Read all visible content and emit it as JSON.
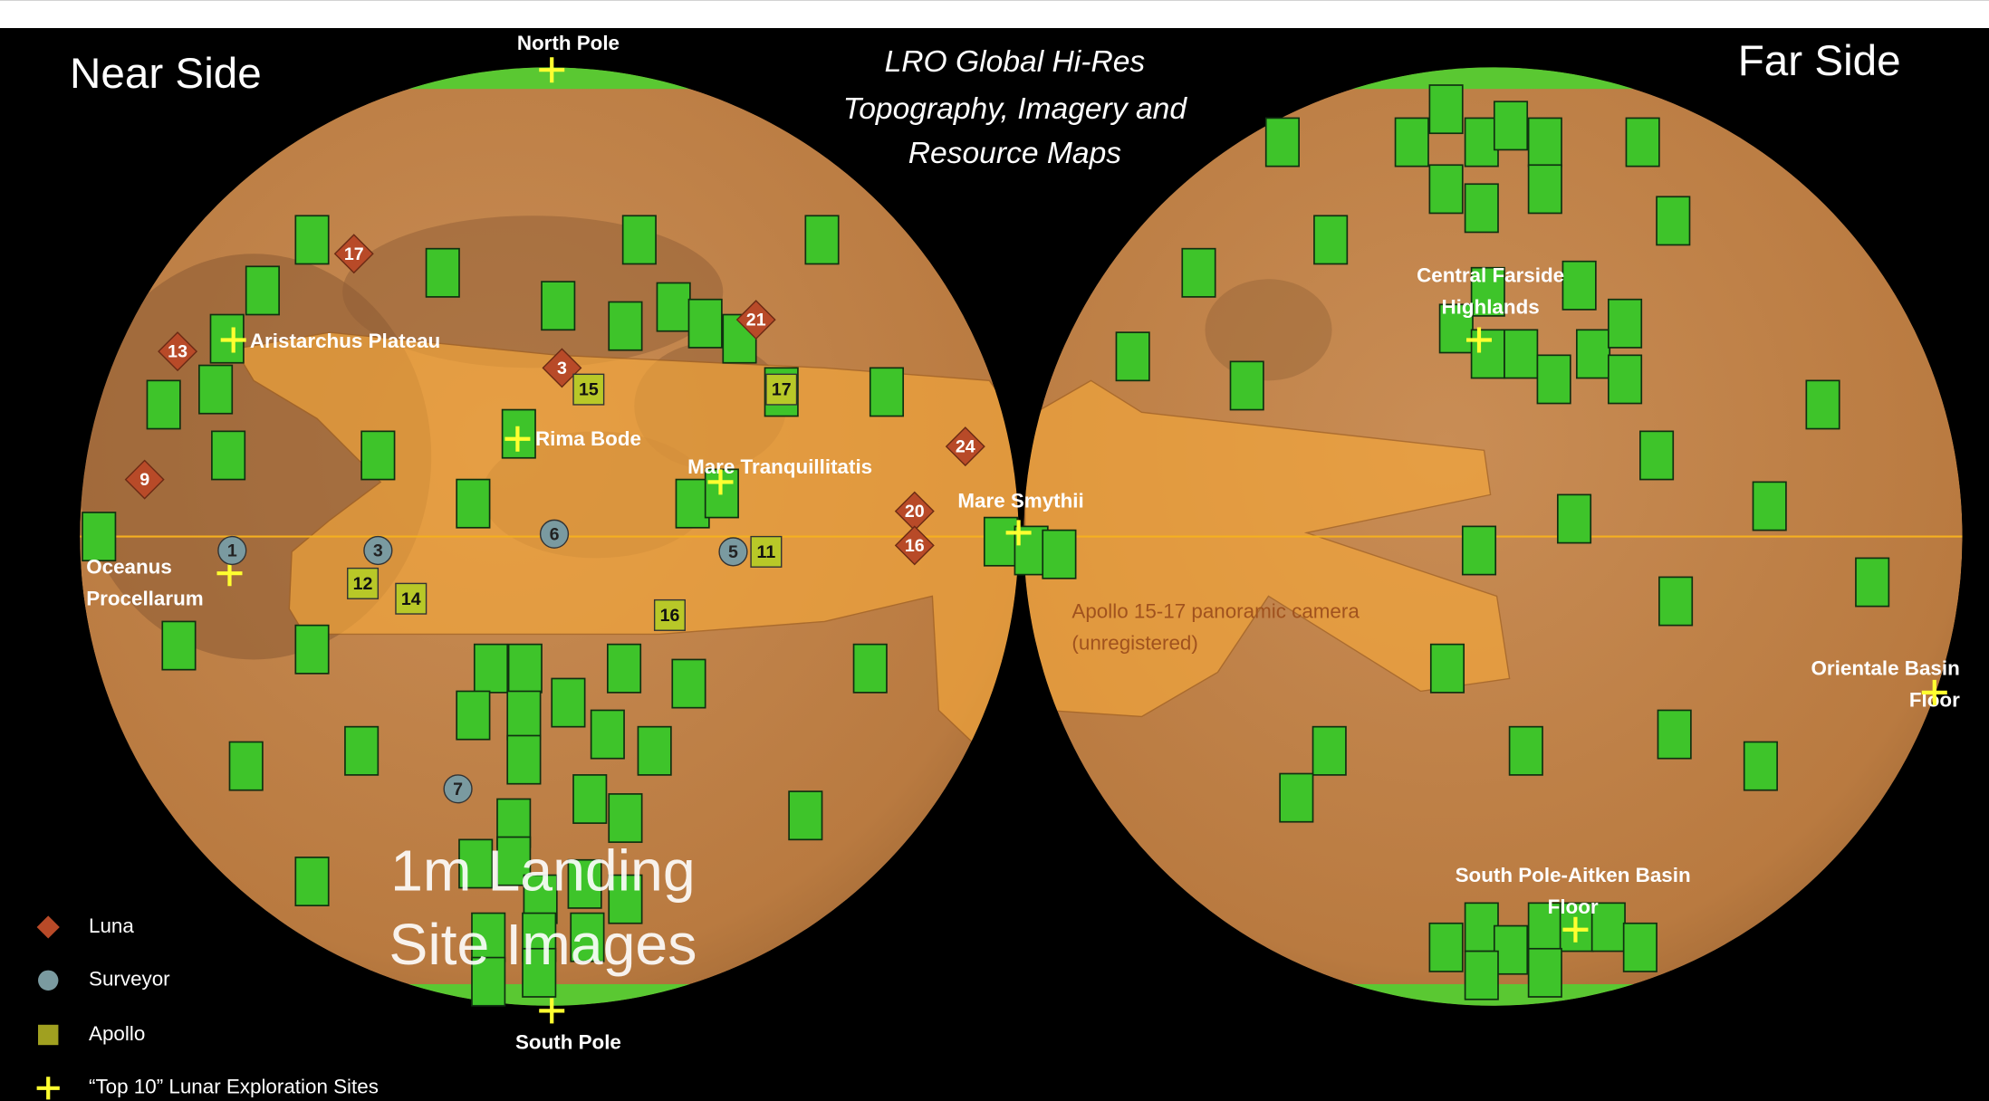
{
  "header": {
    "near_side": "Near Side",
    "far_side": "Far Side",
    "title_lines": [
      "LRO Global Hi-Res",
      "Topography, Imagery and",
      "Resource Maps"
    ],
    "landing_lines": [
      "1m Landing",
      "Site Images"
    ]
  },
  "poles": {
    "north": "North Pole",
    "south": "South Pole"
  },
  "sites": [
    {
      "lines": [
        "Aristarchus Plateau"
      ]
    },
    {
      "lines": [
        "Rima Bode"
      ]
    },
    {
      "lines": [
        "Mare Tranquillitatis"
      ]
    },
    {
      "lines": [
        "Mare Smythii"
      ]
    },
    {
      "lines": [
        "Oceanus",
        "Procellarum"
      ]
    },
    {
      "lines": [
        "Central Farside",
        "Highlands"
      ]
    },
    {
      "lines": [
        "Orientale Basin",
        "Floor"
      ]
    },
    {
      "lines": [
        "South Pole-Aitken Basin",
        "Floor"
      ]
    }
  ],
  "panoramic_note": [
    "Apollo 15-17 panoramic camera",
    "(unregistered)"
  ],
  "luna": [
    "17",
    "13",
    "3",
    "21",
    "9",
    "24",
    "20",
    "16"
  ],
  "surveyor": [
    "1",
    "3",
    "6",
    "5",
    "7"
  ],
  "apollo": [
    "15",
    "17",
    "11",
    "12",
    "14",
    "16"
  ],
  "legend": [
    "Luna",
    "Surveyor",
    "Apollo",
    "“Top 10” Lunar Exploration Sites"
  ]
}
